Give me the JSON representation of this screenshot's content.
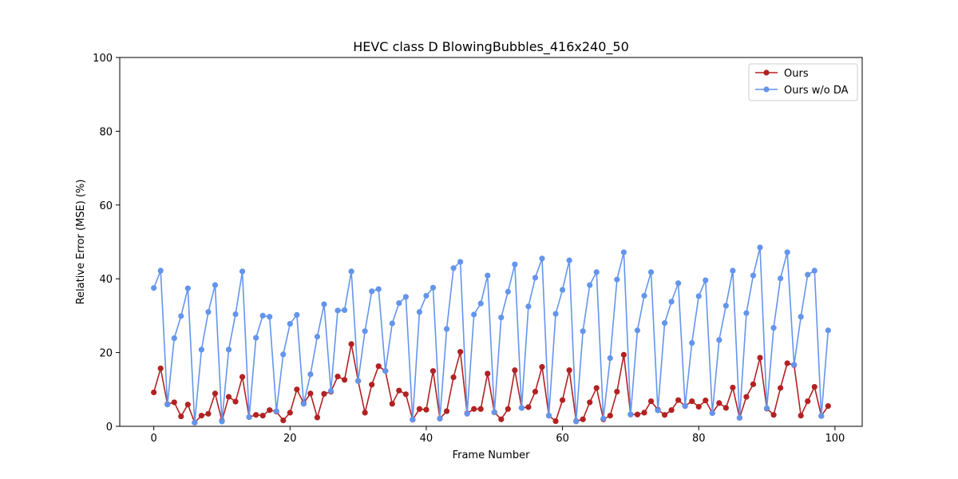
{
  "chart_data": {
    "type": "line",
    "title": "HEVC class D BlowingBubbles_416x240_50",
    "xlabel": "Frame Number",
    "ylabel": "Relative Error (MSE) (%)",
    "xlim": [
      -5,
      104
    ],
    "ylim": [
      0,
      100
    ],
    "xticks": [
      0,
      20,
      40,
      60,
      80,
      100
    ],
    "yticks": [
      0,
      20,
      40,
      60,
      80,
      100
    ],
    "grid": false,
    "legend_position": "top-right",
    "x": [
      0,
      1,
      2,
      3,
      4,
      5,
      6,
      7,
      8,
      9,
      10,
      11,
      12,
      13,
      14,
      15,
      16,
      17,
      18,
      19,
      20,
      21,
      22,
      23,
      24,
      25,
      26,
      27,
      28,
      29,
      30,
      31,
      32,
      33,
      34,
      35,
      36,
      37,
      38,
      39,
      40,
      41,
      42,
      43,
      44,
      45,
      46,
      47,
      48,
      49,
      50,
      51,
      52,
      53,
      54,
      55,
      56,
      57,
      58,
      59,
      60,
      61,
      62,
      63,
      64,
      65,
      66,
      67,
      68,
      69,
      70,
      71,
      72,
      73,
      74,
      75,
      76,
      77,
      78,
      79,
      80,
      81,
      82,
      83,
      84,
      85,
      86,
      87,
      88,
      89,
      90,
      91,
      92,
      93,
      94,
      95,
      96,
      97,
      98,
      99
    ],
    "series": [
      {
        "name": "Ours",
        "color": "#b22222",
        "values": [
          9.2,
          15.7,
          6.0,
          6.5,
          2.7,
          5.9,
          1.0,
          2.9,
          3.4,
          8.9,
          1.5,
          8.0,
          6.7,
          13.4,
          2.5,
          3.1,
          2.9,
          4.4,
          4.0,
          1.6,
          3.7,
          10.0,
          6.3,
          8.9,
          2.4,
          8.8,
          9.4,
          13.5,
          12.6,
          22.3,
          12.3,
          3.7,
          11.3,
          16.3,
          15.0,
          6.1,
          9.7,
          8.7,
          1.8,
          4.7,
          4.5,
          15.0,
          2.1,
          4.1,
          13.3,
          20.2,
          3.5,
          4.7,
          4.7,
          14.3,
          3.8,
          1.9,
          4.7,
          15.2,
          5.0,
          5.2,
          9.4,
          16.1,
          2.9,
          1.4,
          7.1,
          15.2,
          1.4,
          1.9,
          6.5,
          10.4,
          1.9,
          2.9,
          9.4,
          19.4,
          3.2,
          3.2,
          3.7,
          6.8,
          4.5,
          3.1,
          4.4,
          7.1,
          5.5,
          6.8,
          5.3,
          7.0,
          3.6,
          6.3,
          5.0,
          10.5,
          2.3,
          8.0,
          11.4,
          18.6,
          4.8,
          3.1,
          10.4,
          17.1,
          16.6,
          2.9,
          6.8,
          10.7,
          2.8,
          5.5
        ]
      },
      {
        "name": "Ours w/o DA",
        "color": "#6495ed",
        "values": [
          37.5,
          42.2,
          5.9,
          23.9,
          29.9,
          37.4,
          1.0,
          20.8,
          31.0,
          38.3,
          1.3,
          20.8,
          30.4,
          42.0,
          2.5,
          24.0,
          30.0,
          29.7,
          4.1,
          19.5,
          27.8,
          30.2,
          6.1,
          14.1,
          24.3,
          33.1,
          9.6,
          31.4,
          31.5,
          42.0,
          12.3,
          25.8,
          36.6,
          37.2,
          15.0,
          27.9,
          33.4,
          35.1,
          1.8,
          31.0,
          35.4,
          37.6,
          2.1,
          26.4,
          42.9,
          44.6,
          3.4,
          30.3,
          33.3,
          40.9,
          3.8,
          29.5,
          36.5,
          43.9,
          5.0,
          32.5,
          40.3,
          45.5,
          2.9,
          30.5,
          37.0,
          45.0,
          1.3,
          25.8,
          38.3,
          41.8,
          2.1,
          18.5,
          39.8,
          47.2,
          3.2,
          26.0,
          35.4,
          41.8,
          4.3,
          28.0,
          33.8,
          38.8,
          5.5,
          22.6,
          35.3,
          39.6,
          3.6,
          23.4,
          32.7,
          42.2,
          2.3,
          30.7,
          40.9,
          48.5,
          4.9,
          26.7,
          40.1,
          47.2,
          16.7,
          29.7,
          41.1,
          42.2,
          2.8,
          26.0
        ]
      }
    ]
  }
}
